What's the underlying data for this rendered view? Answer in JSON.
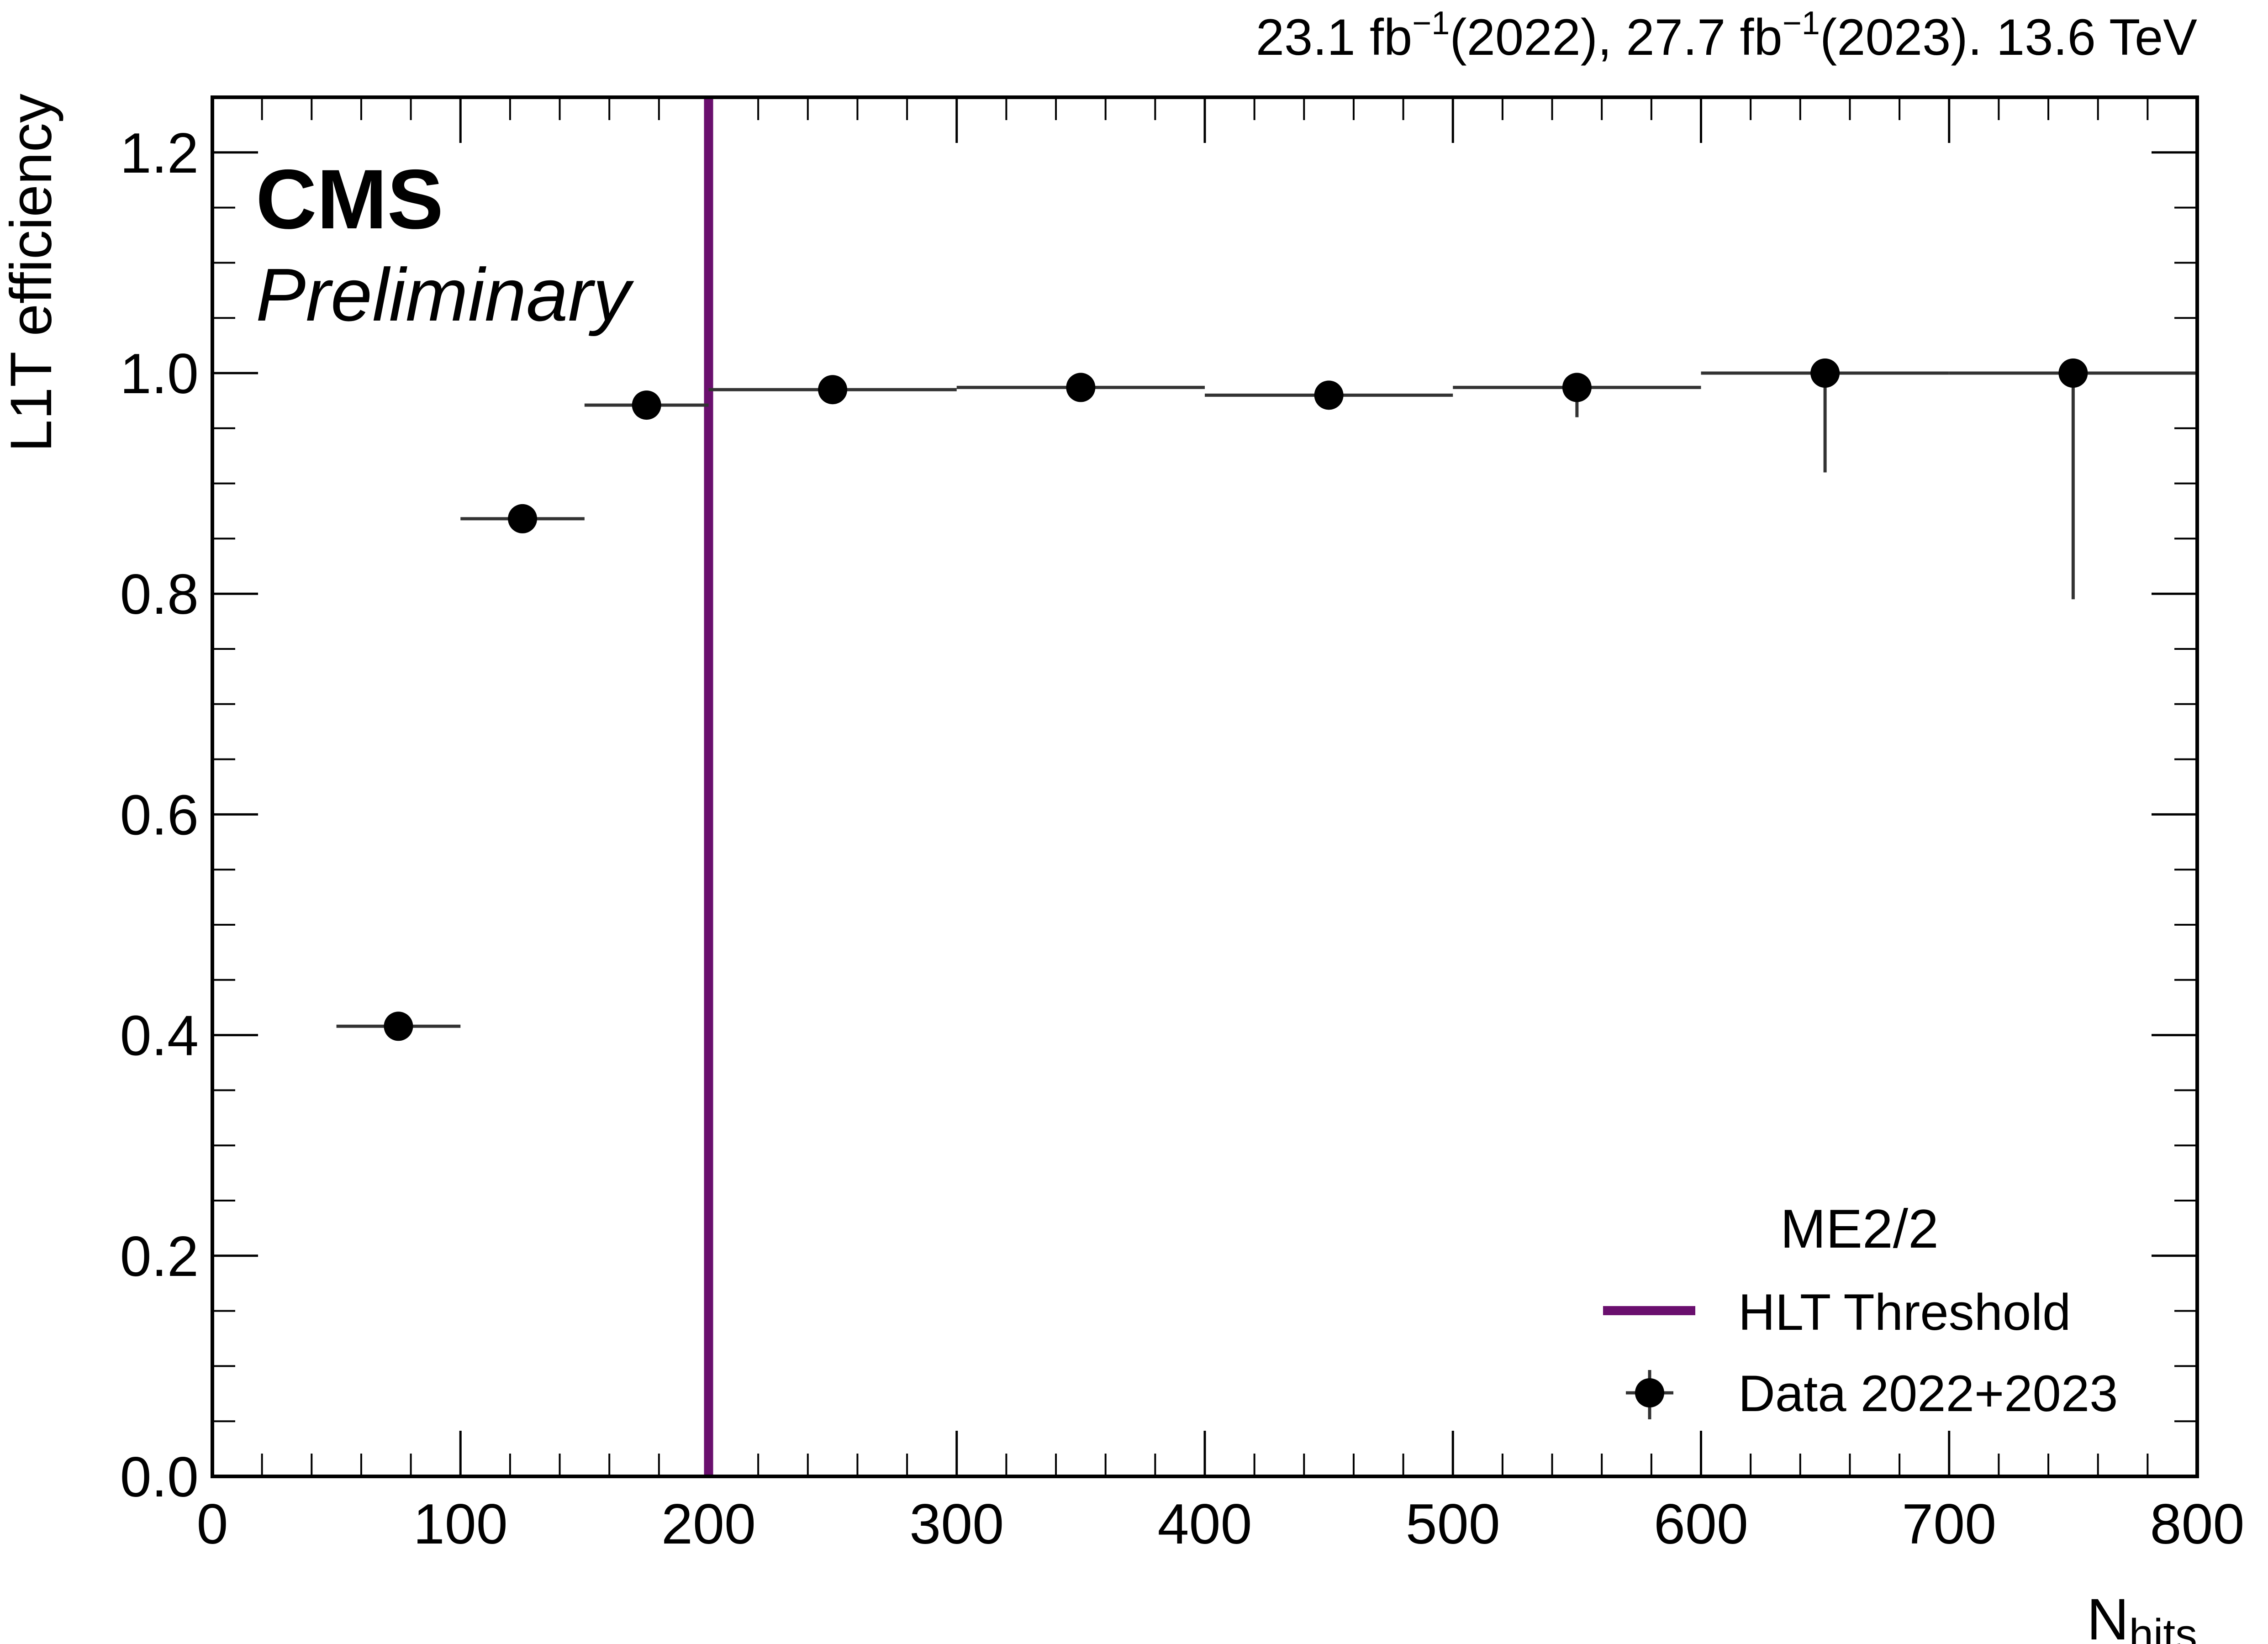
{
  "header": {
    "lumi_parts": [
      "23.1 fb",
      "−1",
      "(2022), 27.7 fb",
      "−1",
      "(2023). 13.6 TeV"
    ]
  },
  "labels": {
    "experiment": "CMS",
    "status": "Preliminary"
  },
  "colors": {
    "threshold": "#6a0f6e",
    "data": "#000000",
    "errorbar": "#333333"
  },
  "chart_data": {
    "type": "scatter",
    "xlabel_main": "N",
    "xlabel_sub": "hits",
    "ylabel": "L1T efficiency",
    "xlim": [
      0,
      800
    ],
    "ylim": [
      0,
      1.25
    ],
    "xticks": [
      0,
      100,
      200,
      300,
      400,
      500,
      600,
      700,
      800
    ],
    "xtick_labels": [
      "0",
      "100",
      "200",
      "300",
      "400",
      "500",
      "600",
      "700",
      "800"
    ],
    "yticks": [
      0,
      0.2,
      0.4,
      0.6,
      0.8,
      1.0,
      1.2
    ],
    "ytick_labels": [
      "0.0",
      "0.2",
      "0.4",
      "0.6",
      "0.8",
      "1.0",
      "1.2"
    ],
    "legend_title": "ME2/2",
    "legend_position": "bottom-right",
    "threshold": {
      "name": "HLT Threshold",
      "x": 200
    },
    "series": [
      {
        "name": "Data 2022+2023",
        "points": [
          {
            "x": 75,
            "xlo": 50,
            "xhi": 100,
            "y": 0.408,
            "ylo": 0.408,
            "yhi": 0.408
          },
          {
            "x": 125,
            "xlo": 100,
            "xhi": 150,
            "y": 0.868,
            "ylo": 0.868,
            "yhi": 0.868
          },
          {
            "x": 175,
            "xlo": 150,
            "xhi": 200,
            "y": 0.971,
            "ylo": 0.971,
            "yhi": 0.971
          },
          {
            "x": 250,
            "xlo": 200,
            "xhi": 300,
            "y": 0.985,
            "ylo": 0.985,
            "yhi": 0.985
          },
          {
            "x": 350,
            "xlo": 300,
            "xhi": 400,
            "y": 0.987,
            "ylo": 0.987,
            "yhi": 0.987
          },
          {
            "x": 450,
            "xlo": 400,
            "xhi": 500,
            "y": 0.98,
            "ylo": 0.98,
            "yhi": 0.98
          },
          {
            "x": 550,
            "xlo": 500,
            "xhi": 600,
            "y": 0.987,
            "ylo": 0.96,
            "yhi": 0.987
          },
          {
            "x": 650,
            "xlo": 600,
            "xhi": 700,
            "y": 1.0,
            "ylo": 0.91,
            "yhi": 1.0
          },
          {
            "x": 750,
            "xlo": 700,
            "xhi": 800,
            "y": 1.0,
            "ylo": 0.795,
            "yhi": 1.0
          }
        ]
      }
    ]
  }
}
